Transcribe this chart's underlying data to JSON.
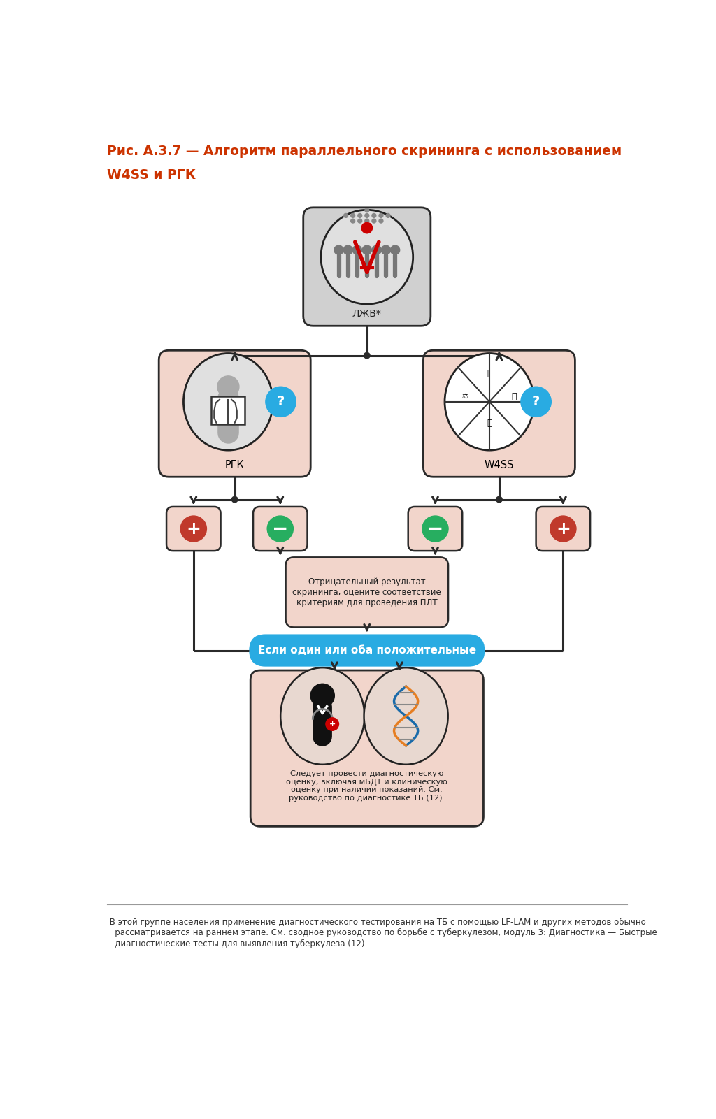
{
  "title_line1": "Рис. А.3.7 — Алгоритм параллельного скрининга с использованием",
  "title_line2": "W4SS и РГК",
  "title_color": "#cc3300",
  "title_fontsize": 13.5,
  "bg_color": "#ffffff",
  "box_salmon": "#f2d5cb",
  "box_gray": "#d0d0d0",
  "box_border": "#2a2a2a",
  "arrow_color": "#2a2a2a",
  "blue_banner_color": "#29abe2",
  "blue_banner_text": "Если один или оба положительные",
  "node_ljv_label": "ЛЖВ*",
  "node_rgk_label": "РГК",
  "node_w4ss_label": "W4SS",
  "neg_box_text": "Отрицательный результат\nскрининга, оцените соответствие\nкритериям для проведения ПЛТ",
  "final_box_text": "Следует провести диагностическую\nоценку, включая мБДТ и клиническую\nоценку при наличии показаний. См.\nруководство по диагностике ТБ (12).",
  "footnote_star": "*",
  "footnote_text": " В этой группе населения применение диагностического тестирования на ТБ с помощью LF-LAM и других методов обычно\n   рассматривается на раннем этапе. См. сводное руководство по борьбе с туберкулезом, модуль 3: Диагностика — Быстрые\n   диагностические тесты для выявления туберкулеза (12).",
  "footnote_fontsize": 8.5,
  "lw_main": 2.2,
  "dot_r": 0.055
}
